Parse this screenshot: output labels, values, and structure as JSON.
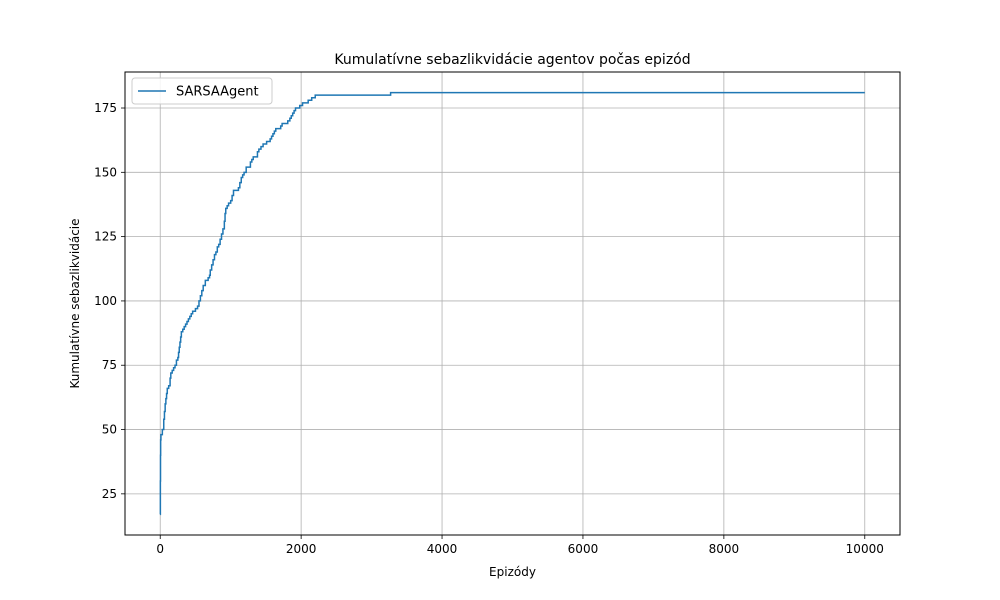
{
  "chart_data": {
    "type": "line",
    "title": "Kumulatívne sebazlikvidácie agentov počas epizód",
    "xlabel": "Epizódy",
    "ylabel": "Kumulatívne sebazlikvidácie",
    "xlim": [
      -500,
      10500
    ],
    "ylim": [
      9,
      189
    ],
    "xticks": [
      0,
      2000,
      4000,
      6000,
      8000,
      10000
    ],
    "yticks": [
      25,
      50,
      75,
      100,
      125,
      150,
      175
    ],
    "grid": true,
    "legend_position": "top-left",
    "series": [
      {
        "name": "SARSAAgent",
        "color": "#1f77b4",
        "step": true,
        "points": [
          [
            0,
            17
          ],
          [
            2,
            30
          ],
          [
            4,
            40
          ],
          [
            6,
            46
          ],
          [
            10,
            48
          ],
          [
            30,
            50
          ],
          [
            50,
            54
          ],
          [
            60,
            57
          ],
          [
            70,
            60
          ],
          [
            80,
            62
          ],
          [
            90,
            64
          ],
          [
            100,
            66
          ],
          [
            120,
            67
          ],
          [
            140,
            70
          ],
          [
            150,
            72
          ],
          [
            170,
            73
          ],
          [
            190,
            74
          ],
          [
            210,
            75
          ],
          [
            230,
            77
          ],
          [
            250,
            78
          ],
          [
            260,
            80
          ],
          [
            270,
            82
          ],
          [
            280,
            84
          ],
          [
            290,
            86
          ],
          [
            300,
            88
          ],
          [
            320,
            89
          ],
          [
            340,
            90
          ],
          [
            360,
            91
          ],
          [
            380,
            92
          ],
          [
            400,
            93
          ],
          [
            420,
            94
          ],
          [
            440,
            95
          ],
          [
            460,
            96
          ],
          [
            500,
            97
          ],
          [
            530,
            98
          ],
          [
            550,
            100
          ],
          [
            570,
            102
          ],
          [
            590,
            104
          ],
          [
            610,
            106
          ],
          [
            640,
            108
          ],
          [
            680,
            109
          ],
          [
            700,
            110
          ],
          [
            710,
            112
          ],
          [
            730,
            114
          ],
          [
            750,
            116
          ],
          [
            770,
            118
          ],
          [
            790,
            119
          ],
          [
            810,
            121
          ],
          [
            830,
            122
          ],
          [
            850,
            124
          ],
          [
            870,
            126
          ],
          [
            890,
            128
          ],
          [
            910,
            131
          ],
          [
            920,
            134
          ],
          [
            930,
            136
          ],
          [
            950,
            137
          ],
          [
            970,
            138
          ],
          [
            1000,
            139
          ],
          [
            1020,
            141
          ],
          [
            1040,
            143
          ],
          [
            1080,
            143
          ],
          [
            1110,
            144
          ],
          [
            1130,
            146
          ],
          [
            1150,
            148
          ],
          [
            1170,
            149
          ],
          [
            1190,
            150
          ],
          [
            1220,
            152
          ],
          [
            1250,
            152
          ],
          [
            1280,
            154
          ],
          [
            1300,
            155
          ],
          [
            1320,
            156
          ],
          [
            1350,
            156
          ],
          [
            1380,
            158
          ],
          [
            1400,
            159
          ],
          [
            1430,
            160
          ],
          [
            1460,
            161
          ],
          [
            1510,
            162
          ],
          [
            1560,
            163
          ],
          [
            1580,
            164
          ],
          [
            1600,
            165
          ],
          [
            1620,
            166
          ],
          [
            1640,
            167
          ],
          [
            1690,
            167
          ],
          [
            1710,
            168
          ],
          [
            1730,
            169
          ],
          [
            1790,
            169
          ],
          [
            1810,
            170
          ],
          [
            1840,
            171
          ],
          [
            1860,
            172
          ],
          [
            1880,
            173
          ],
          [
            1900,
            174
          ],
          [
            1920,
            175
          ],
          [
            1960,
            175
          ],
          [
            1980,
            176
          ],
          [
            2020,
            177
          ],
          [
            2080,
            177
          ],
          [
            2100,
            178
          ],
          [
            2150,
            179
          ],
          [
            2180,
            179
          ],
          [
            2200,
            180
          ],
          [
            3260,
            180
          ],
          [
            3270,
            181
          ],
          [
            10000,
            181
          ]
        ]
      }
    ]
  }
}
